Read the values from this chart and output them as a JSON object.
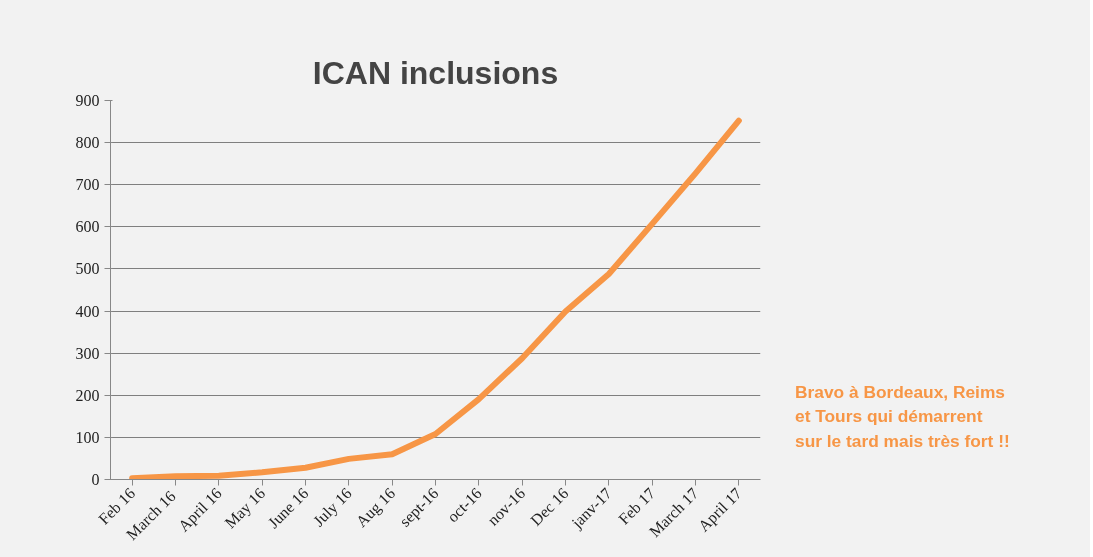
{
  "chart_data": {
    "type": "line",
    "title": "ICAN inclusions",
    "categories": [
      "Feb 16",
      "March  16",
      "April 16",
      "May 16",
      "June 16",
      "July 16",
      "Aug 16",
      "sept-16",
      "oct-16",
      "nov-16",
      "Dec 16",
      "janv-17",
      "Feb 17",
      "March 17",
      "April 17"
    ],
    "series": [
      {
        "color": "#f79646",
        "values": [
          3,
          8,
          9,
          17,
          28,
          49,
          60,
          108,
          191,
          288,
          399,
          488,
          607,
          727,
          852
        ]
      }
    ],
    "ylim": [
      0,
      900
    ],
    "yticks": [
      0,
      100,
      200,
      300,
      400,
      500,
      600,
      700,
      800,
      900
    ],
    "grid": "y",
    "marker": "none",
    "line_style": "solid",
    "annotations": [
      "Bravo à Bordeaux, Reims\net Tours qui démarrent\nsur le tard mais très fort !!"
    ]
  }
}
